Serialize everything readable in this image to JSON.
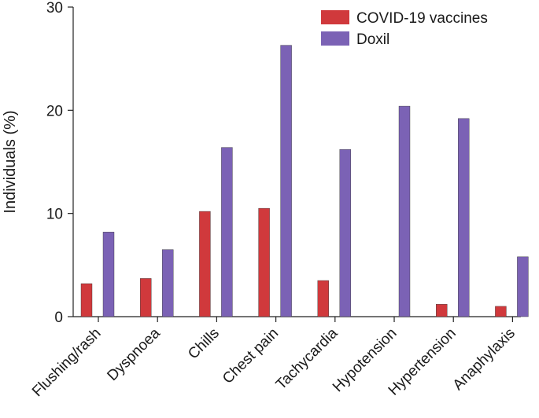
{
  "chart_data": {
    "type": "bar",
    "title": "",
    "xlabel": "",
    "ylabel": "Individuals (%)",
    "ylim": [
      0,
      30
    ],
    "yticks": [
      0,
      10,
      20,
      30
    ],
    "grid": false,
    "legend_position": "top-right",
    "categories": [
      "Flushing/rash",
      "Dyspnoea",
      "Chills",
      "Chest pain",
      "Tachycardia",
      "Hypotension",
      "Hypertension",
      "Anaphylaxis"
    ],
    "series": [
      {
        "name": "COVID-19 vaccines",
        "color": "#d0393c",
        "values": [
          3.2,
          3.7,
          10.2,
          10.5,
          3.5,
          0,
          1.2,
          1.0
        ]
      },
      {
        "name": "Doxil",
        "color": "#7b62b5",
        "values": [
          8.2,
          6.5,
          16.4,
          26.3,
          16.2,
          20.4,
          19.2,
          5.8
        ]
      }
    ]
  }
}
